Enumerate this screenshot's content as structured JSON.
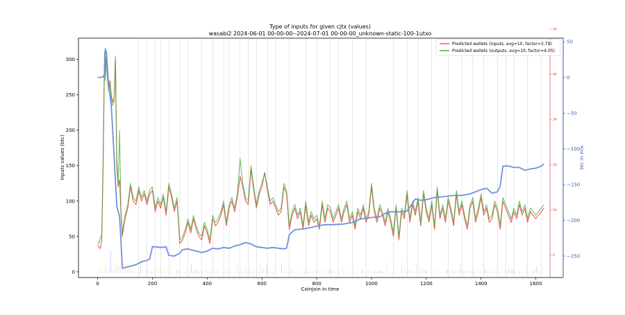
{
  "chart_data": {
    "type": "line",
    "title": "Type of inputs for given cjtx (values)",
    "subtitle": "wasabi2 2024-06-01 00-00-00--2024-07-01 00-00-00_unknown-static-100-1utxo",
    "xlabel": "Coinjoin in time",
    "ylabel": "Inputs values (btc)",
    "y3label": "btc in mix",
    "xlim": [
      -70,
      1700
    ],
    "ylim": [
      -8,
      330
    ],
    "y2lim": [
      -5,
      48
    ],
    "y3lim": [
      -280,
      55
    ],
    "x_ticks": [
      "0",
      "200",
      "400",
      "600",
      "800",
      "1000",
      "1200",
      "1400",
      "1600"
    ],
    "y_ticks": [
      "0",
      "50",
      "100",
      "150",
      "200",
      "250",
      "300"
    ],
    "y2_ticks": [
      "0",
      "10",
      "20",
      "30",
      "40",
      "50"
    ],
    "y3_ticks": [
      "−250",
      "−200",
      "−150",
      "−100",
      "−50",
      "0",
      "50"
    ],
    "legend": {
      "position": "top-right",
      "entries": [
        "Predicted wallets (inputs, avg=10, factor=3.79)",
        "Predicted wallets (outputs, avg=10, factor=4.05)"
      ]
    },
    "colors": {
      "inputs": "#e8534a",
      "outputs": "#3cab3c",
      "mix": "#7090dd",
      "y2_axis": "#e02020",
      "y3_axis": "#4060c0",
      "vlines": "#d0d0d0"
    },
    "vertical_lines_x": [
      150,
      180,
      210,
      230,
      260,
      300,
      330,
      380,
      420,
      460,
      480,
      520,
      550,
      580,
      620,
      650,
      700,
      760,
      800,
      850,
      880,
      930,
      980,
      1080,
      1130,
      1170,
      1220,
      1280,
      1330,
      1370,
      1410,
      1460,
      1490,
      1520,
      1570,
      1620
    ],
    "series": [
      {
        "name": "Predicted wallets (inputs, avg=10, factor=3.79)",
        "axis": "y",
        "x": [
          0,
          5,
          10,
          15,
          20,
          25,
          28,
          32,
          35,
          40,
          45,
          50,
          55,
          60,
          65,
          70,
          75,
          80,
          85,
          90,
          100,
          110,
          120,
          130,
          140,
          150,
          160,
          170,
          180,
          190,
          200,
          210,
          220,
          230,
          240,
          250,
          260,
          270,
          280,
          290,
          300,
          310,
          320,
          330,
          340,
          350,
          360,
          370,
          380,
          390,
          400,
          410,
          420,
          430,
          440,
          450,
          460,
          470,
          480,
          490,
          500,
          510,
          520,
          530,
          540,
          550,
          560,
          570,
          580,
          590,
          600,
          610,
          620,
          630,
          640,
          650,
          660,
          670,
          680,
          690,
          700,
          710,
          720,
          730,
          740,
          750,
          760,
          770,
          780,
          790,
          800,
          810,
          820,
          830,
          840,
          850,
          860,
          870,
          880,
          890,
          900,
          910,
          920,
          930,
          940,
          950,
          960,
          970,
          980,
          990,
          1000,
          1010,
          1020,
          1030,
          1040,
          1050,
          1060,
          1070,
          1080,
          1090,
          1100,
          1110,
          1120,
          1130,
          1140,
          1150,
          1160,
          1170,
          1180,
          1190,
          1200,
          1210,
          1220,
          1230,
          1240,
          1250,
          1260,
          1270,
          1280,
          1290,
          1300,
          1310,
          1320,
          1330,
          1340,
          1350,
          1360,
          1370,
          1380,
          1390,
          1400,
          1410,
          1420,
          1430,
          1440,
          1450,
          1460,
          1470,
          1480,
          1490,
          1500,
          1510,
          1520,
          1530,
          1540,
          1550,
          1560,
          1570,
          1580,
          1590,
          1600,
          1610,
          1620,
          1630
        ],
        "values": [
          38,
          35,
          33,
          45,
          150,
          300,
          280,
          310,
          285,
          260,
          270,
          250,
          240,
          245,
          300,
          150,
          120,
          130,
          85,
          50,
          75,
          90,
          120,
          100,
          95,
          115,
          100,
          110,
          95,
          110,
          115,
          85,
          100,
          90,
          105,
          80,
          120,
          105,
          85,
          100,
          40,
          45,
          55,
          70,
          55,
          75,
          60,
          50,
          45,
          65,
          55,
          40,
          75,
          65,
          70,
          80,
          95,
          65,
          90,
          100,
          85,
          105,
          135,
          120,
          100,
          95,
          145,
          115,
          90,
          110,
          120,
          140,
          115,
          95,
          100,
          90,
          80,
          85,
          120,
          110,
          60,
          80,
          90,
          75,
          85,
          60,
          95,
          65,
          80,
          70,
          75,
          60,
          95,
          70,
          90,
          85,
          70,
          80,
          90,
          70,
          85,
          95,
          70,
          80,
          60,
          85,
          75,
          90,
          70,
          80,
          120,
          85,
          70,
          90,
          80,
          65,
          85,
          70,
          50,
          90,
          45,
          85,
          75,
          110,
          70,
          95,
          80,
          100,
          65,
          110,
          85,
          70,
          95,
          60,
          115,
          75,
          90,
          70,
          100,
          85,
          65,
          110,
          80,
          95,
          75,
          60,
          90,
          100,
          70,
          85,
          105,
          80,
          90,
          70,
          75,
          95,
          85,
          60,
          100,
          90,
          80,
          70,
          85,
          75,
          95,
          80,
          90,
          70,
          85,
          80,
          75,
          80,
          85,
          90
        ]
      },
      {
        "name": "Predicted wallets (outputs, avg=10, factor=4.05)",
        "axis": "y",
        "x": [
          0,
          5,
          10,
          15,
          20,
          25,
          28,
          32,
          35,
          40,
          45,
          50,
          55,
          60,
          65,
          70,
          75,
          80,
          85,
          90,
          100,
          110,
          120,
          130,
          140,
          150,
          160,
          170,
          180,
          190,
          200,
          210,
          220,
          230,
          240,
          250,
          260,
          270,
          280,
          290,
          300,
          310,
          320,
          330,
          340,
          350,
          360,
          370,
          380,
          390,
          400,
          410,
          420,
          430,
          440,
          450,
          460,
          470,
          480,
          490,
          500,
          510,
          520,
          530,
          540,
          550,
          560,
          570,
          580,
          590,
          600,
          610,
          620,
          630,
          640,
          650,
          660,
          670,
          680,
          690,
          700,
          710,
          720,
          730,
          740,
          750,
          760,
          770,
          780,
          790,
          800,
          810,
          820,
          830,
          840,
          850,
          860,
          870,
          880,
          890,
          900,
          910,
          920,
          930,
          940,
          950,
          960,
          970,
          980,
          990,
          1000,
          1010,
          1020,
          1030,
          1040,
          1050,
          1060,
          1070,
          1080,
          1090,
          1100,
          1110,
          1120,
          1130,
          1140,
          1150,
          1160,
          1170,
          1180,
          1190,
          1200,
          1210,
          1220,
          1230,
          1240,
          1250,
          1260,
          1270,
          1280,
          1290,
          1300,
          1310,
          1320,
          1330,
          1340,
          1350,
          1360,
          1370,
          1380,
          1390,
          1400,
          1410,
          1420,
          1430,
          1440,
          1450,
          1460,
          1470,
          1480,
          1490,
          1500,
          1510,
          1520,
          1530,
          1540,
          1550,
          1560,
          1570,
          1580,
          1590,
          1600,
          1610,
          1620,
          1630
        ],
        "values": [
          42,
          40,
          48,
          52,
          160,
          310,
          270,
          300,
          275,
          255,
          265,
          245,
          235,
          240,
          305,
          160,
          125,
          200,
          90,
          55,
          80,
          95,
          125,
          105,
          100,
          120,
          105,
          115,
          100,
          115,
          120,
          90,
          105,
          95,
          110,
          85,
          125,
          110,
          90,
          105,
          45,
          50,
          60,
          75,
          60,
          80,
          65,
          55,
          50,
          70,
          60,
          45,
          80,
          70,
          75,
          85,
          100,
          70,
          95,
          105,
          90,
          110,
          160,
          125,
          105,
          100,
          150,
          120,
          95,
          115,
          125,
          140,
          120,
          100,
          105,
          95,
          85,
          90,
          125,
          115,
          65,
          85,
          95,
          80,
          90,
          65,
          100,
          70,
          85,
          75,
          80,
          65,
          100,
          75,
          95,
          90,
          75,
          85,
          95,
          75,
          90,
          100,
          75,
          85,
          65,
          90,
          80,
          95,
          75,
          85,
          125,
          90,
          75,
          95,
          85,
          70,
          90,
          75,
          55,
          95,
          50,
          90,
          80,
          115,
          75,
          100,
          85,
          105,
          70,
          115,
          90,
          75,
          100,
          65,
          120,
          80,
          95,
          75,
          105,
          90,
          70,
          115,
          85,
          100,
          80,
          65,
          95,
          105,
          75,
          90,
          110,
          85,
          95,
          75,
          80,
          100,
          90,
          65,
          105,
          95,
          85,
          75,
          90,
          80,
          100,
          85,
          95,
          75,
          90,
          85,
          80,
          85,
          90,
          95
        ]
      },
      {
        "name": "btc in mix",
        "axis": "y3",
        "x": [
          0,
          10,
          20,
          25,
          28,
          32,
          40,
          50,
          60,
          70,
          80,
          85,
          90,
          100,
          120,
          140,
          160,
          180,
          190,
          200,
          210,
          230,
          250,
          260,
          280,
          300,
          310,
          330,
          350,
          370,
          380,
          400,
          420,
          440,
          460,
          480,
          500,
          520,
          540,
          560,
          580,
          600,
          620,
          640,
          660,
          680,
          690,
          700,
          720,
          750,
          780,
          800,
          830,
          860,
          900,
          930,
          960,
          1000,
          1030,
          1060,
          1100,
          1130,
          1160,
          1180,
          1200,
          1230,
          1260,
          1300,
          1330,
          1360,
          1400,
          1420,
          1440,
          1460,
          1470,
          1480,
          1500,
          1520,
          1540,
          1560,
          1580,
          1600,
          1620,
          1630
        ],
        "values": [
          0,
          0,
          1,
          5,
          40,
          35,
          -10,
          -40,
          -110,
          -180,
          -195,
          -228,
          -267,
          -266,
          -264,
          -262,
          -258,
          -256,
          -254,
          -237,
          -237,
          -238,
          -237,
          -249,
          -250,
          -246,
          -241,
          -240,
          -242,
          -244,
          -245,
          -243,
          -239,
          -240,
          -238,
          -239,
          -236,
          -234,
          -231,
          -233,
          -237,
          -238,
          -239,
          -238,
          -239,
          -240,
          -239,
          -220,
          -213,
          -212,
          -210,
          -208,
          -206,
          -206,
          -205,
          -203,
          -198,
          -196,
          -195,
          -188,
          -188,
          -187,
          -170,
          -172,
          -171,
          -168,
          -167,
          -165,
          -165,
          -163,
          -157,
          -155,
          -162,
          -160,
          -152,
          -124,
          -124,
          -126,
          -126,
          -130,
          -128,
          -127,
          -124,
          -121
        ]
      }
    ],
    "histogram_note": "faint stacked bars near zero"
  }
}
